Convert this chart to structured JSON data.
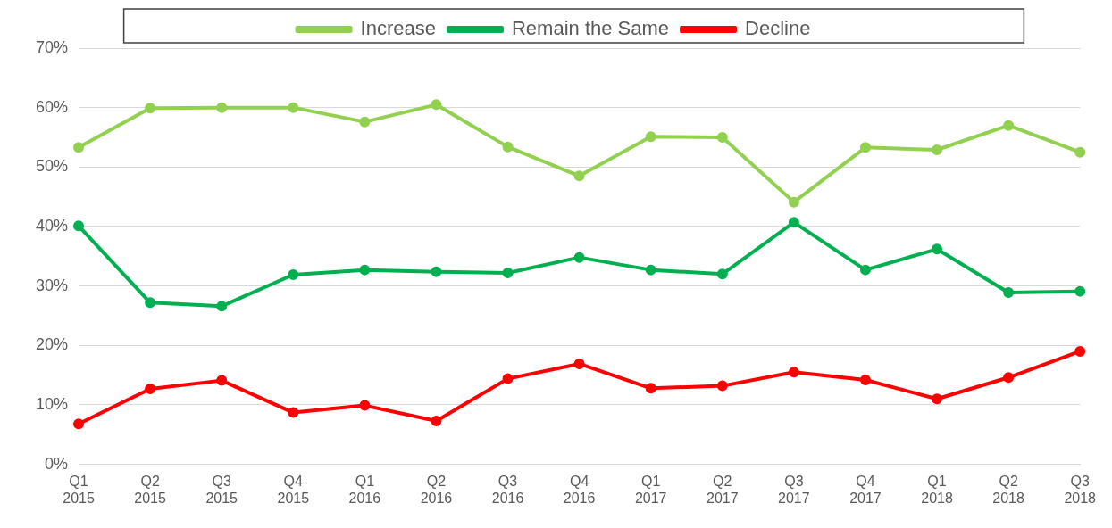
{
  "chart_data": {
    "type": "line",
    "categories": [
      "Q1 2015",
      "Q2 2015",
      "Q3 2015",
      "Q4 2015",
      "Q1 2016",
      "Q2 2016",
      "Q3 2016",
      "Q4 2016",
      "Q1 2017",
      "Q2 2017",
      "Q3 2017",
      "Q4 2017",
      "Q1 2018",
      "Q2 2018",
      "Q3 2018"
    ],
    "series": [
      {
        "name": "Increase",
        "color": "#92d050",
        "values": [
          53.3,
          59.9,
          60,
          60,
          57.6,
          60.5,
          53.4,
          48.5,
          55.1,
          55,
          44.1,
          53.3,
          52.9,
          57,
          52.5
        ]
      },
      {
        "name": "Remain the Same",
        "color": "#00b050",
        "values": [
          40.1,
          27.2,
          26.6,
          31.9,
          32.7,
          32.4,
          32.2,
          34.8,
          32.7,
          32,
          40.7,
          32.7,
          36.2,
          28.9,
          29.1
        ]
      },
      {
        "name": "Decline",
        "color": "#ff0000",
        "values": [
          6.8,
          12.7,
          14.1,
          8.7,
          9.9,
          7.3,
          14.4,
          16.9,
          12.8,
          13.2,
          15.5,
          14.2,
          11,
          14.6,
          19
        ]
      }
    ],
    "ylim": [
      0,
      70
    ],
    "yticks": [
      {
        "value": 0,
        "label": "0%"
      },
      {
        "value": 10,
        "label": "10%"
      },
      {
        "value": 20,
        "label": "20%"
      },
      {
        "value": 30,
        "label": "30%"
      },
      {
        "value": 40,
        "label": "40%"
      },
      {
        "value": 50,
        "label": "50%"
      },
      {
        "value": 60,
        "label": "60%"
      },
      {
        "value": 70,
        "label": "70%"
      }
    ],
    "grid": "y",
    "legend": "top",
    "marker": "circle",
    "line_style": "solid"
  }
}
